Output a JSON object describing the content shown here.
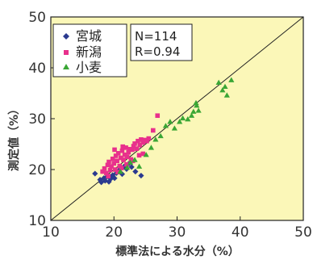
{
  "chart_data": {
    "type": "scatter",
    "xlabel": "標準法による水分（%）",
    "ylabel": "測定値（%）",
    "xlim": [
      10,
      50
    ],
    "ylim": [
      10,
      50
    ],
    "x_ticks": [
      "10",
      "20",
      "30",
      "40",
      "50"
    ],
    "y_ticks": [
      "10",
      "20",
      "30",
      "40",
      "50"
    ],
    "grid": false,
    "legend_position": "top-left",
    "background_color": "#fbf7b8",
    "identity_line": true,
    "stats": {
      "n": "N=114",
      "r": "R=0.94"
    },
    "series": [
      {
        "name": "宮城",
        "marker": "diamond",
        "color": "#2b3a8f",
        "points": [
          [
            17.0,
            19.2
          ],
          [
            17.8,
            18.0
          ],
          [
            18.0,
            17.5
          ],
          [
            18.4,
            18.3
          ],
          [
            18.6,
            17.8
          ],
          [
            18.9,
            18.6
          ],
          [
            19.2,
            17.6
          ],
          [
            19.5,
            18.2
          ],
          [
            19.8,
            18.9
          ],
          [
            20.1,
            18.3
          ],
          [
            20.4,
            19.3
          ],
          [
            20.8,
            19.8
          ],
          [
            21.0,
            20.4
          ],
          [
            21.3,
            19.1
          ],
          [
            21.6,
            20.6
          ],
          [
            22.0,
            20.1
          ],
          [
            22.3,
            21.1
          ],
          [
            22.8,
            20.5
          ],
          [
            23.4,
            19.6
          ],
          [
            24.3,
            18.8
          ]
        ]
      },
      {
        "name": "新潟",
        "marker": "square",
        "color": "#e8308c",
        "points": [
          [
            18.2,
            19.6
          ],
          [
            18.5,
            20.2
          ],
          [
            18.8,
            19.3
          ],
          [
            19.0,
            20.9
          ],
          [
            19.2,
            21.5
          ],
          [
            19.4,
            19.9
          ],
          [
            19.6,
            20.6
          ],
          [
            19.8,
            22.1
          ],
          [
            20.0,
            21.2
          ],
          [
            20.2,
            20.0
          ],
          [
            20.3,
            22.7
          ],
          [
            20.5,
            21.7
          ],
          [
            20.7,
            23.2
          ],
          [
            20.9,
            20.7
          ],
          [
            21.1,
            22.3
          ],
          [
            21.3,
            23.7
          ],
          [
            21.5,
            21.9
          ],
          [
            21.7,
            22.9
          ],
          [
            21.9,
            24.3
          ],
          [
            22.1,
            22.5
          ],
          [
            22.3,
            23.4
          ],
          [
            22.5,
            24.0
          ],
          [
            22.7,
            22.0
          ],
          [
            22.9,
            23.9
          ],
          [
            23.1,
            24.6
          ],
          [
            23.3,
            25.1
          ],
          [
            23.6,
            24.1
          ],
          [
            23.8,
            25.6
          ],
          [
            24.1,
            24.8
          ],
          [
            24.3,
            25.9
          ],
          [
            24.6,
            25.3
          ],
          [
            24.9,
            25.8
          ],
          [
            25.2,
            25.6
          ],
          [
            25.5,
            26.1
          ],
          [
            26.2,
            27.7
          ],
          [
            26.9,
            30.6
          ],
          [
            19.1,
            18.7
          ],
          [
            20.6,
            19.5
          ],
          [
            21.2,
            20.3
          ],
          [
            22.0,
            21.0
          ],
          [
            23.0,
            21.7
          ],
          [
            24.0,
            22.8
          ],
          [
            24.6,
            23.1
          ],
          [
            20.1,
            23.9
          ],
          [
            21.4,
            24.5
          ]
        ]
      },
      {
        "name": "小麦",
        "marker": "triangle",
        "color": "#3aa635",
        "points": [
          [
            21.0,
            19.6
          ],
          [
            22.1,
            20.4
          ],
          [
            22.6,
            21.4
          ],
          [
            23.3,
            21.9
          ],
          [
            24.0,
            20.6
          ],
          [
            25.1,
            22.9
          ],
          [
            25.9,
            24.3
          ],
          [
            26.6,
            25.9
          ],
          [
            27.4,
            26.6
          ],
          [
            28.2,
            28.6
          ],
          [
            28.9,
            29.4
          ],
          [
            29.6,
            28.1
          ],
          [
            30.4,
            29.4
          ],
          [
            30.9,
            30.1
          ],
          [
            31.7,
            29.9
          ],
          [
            32.3,
            30.6
          ],
          [
            32.6,
            31.4
          ],
          [
            33.1,
            32.6
          ],
          [
            33.4,
            31.6
          ],
          [
            33.0,
            33.1
          ],
          [
            36.6,
            37.1
          ],
          [
            37.2,
            35.6
          ],
          [
            37.6,
            36.3
          ],
          [
            37.9,
            34.6
          ],
          [
            38.6,
            37.6
          ]
        ]
      }
    ]
  }
}
